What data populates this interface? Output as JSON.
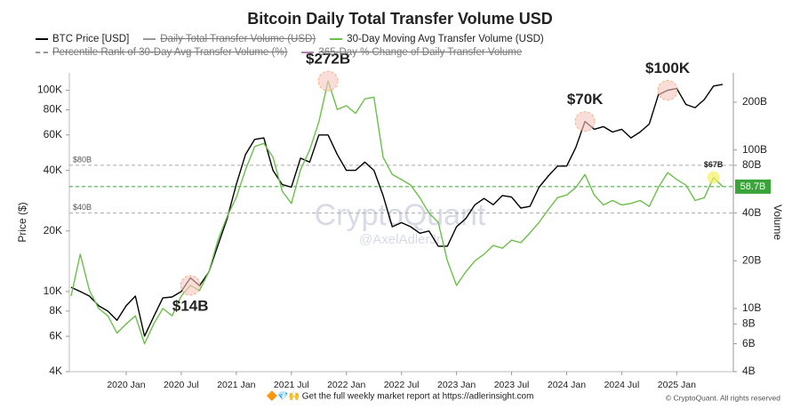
{
  "chart_data": {
    "type": "line",
    "title": "Bitcoin Daily Total Transfer Volume USD",
    "categories": [
      null,
      null,
      null,
      null,
      null,
      null,
      "2020 Jan",
      null,
      null,
      null,
      null,
      null,
      "2020 Jul",
      null,
      null,
      null,
      null,
      null,
      "2021 Jan",
      null,
      null,
      null,
      null,
      null,
      "2021 Jul",
      null,
      null,
      null,
      null,
      null,
      "2022 Jan",
      null,
      null,
      null,
      null,
      null,
      "2022 Jul",
      null,
      null,
      null,
      null,
      null,
      "2023 Jan",
      null,
      null,
      null,
      null,
      null,
      "2023 Jul",
      null,
      null,
      null,
      null,
      null,
      "2024 Jan",
      null,
      null,
      null,
      null,
      null,
      "2024 Jul",
      null,
      null,
      null,
      null,
      null,
      "2025 Jan",
      null,
      null,
      null,
      null,
      null
    ],
    "series": [
      {
        "name": "BTC Price [USD]",
        "color": "#000000",
        "axis": "y",
        "values": [
          10500,
          10000,
          9500,
          8500,
          8000,
          7200,
          8500,
          9500,
          6000,
          7500,
          9300,
          9400,
          10000,
          11700,
          10700,
          12500,
          17000,
          23000,
          34000,
          48000,
          57000,
          58000,
          40000,
          34000,
          33000,
          46000,
          44000,
          60000,
          60000,
          48000,
          40000,
          40000,
          44000,
          40000,
          30000,
          21000,
          22000,
          21000,
          19500,
          20000,
          16800,
          16800,
          21000,
          23000,
          27000,
          29000,
          27000,
          30000,
          29500,
          26000,
          26500,
          33000,
          37500,
          42000,
          42000,
          52000,
          70000,
          64000,
          66000,
          62000,
          64000,
          58000,
          62000,
          68000,
          95000,
          100000,
          102000,
          85000,
          82000,
          90000,
          105000,
          107000
        ]
      },
      {
        "name": "30-Day Moving Avg Transfer Volume (USD)",
        "color": "#6dbf4b",
        "axis": "y2",
        "values": [
          12,
          22,
          13,
          10,
          9,
          7,
          8,
          9,
          6,
          8,
          10,
          9,
          12,
          14,
          13,
          17,
          27,
          38,
          50,
          75,
          105,
          110,
          90,
          55,
          46,
          75,
          100,
          150,
          272,
          180,
          190,
          170,
          210,
          215,
          90,
          70,
          65,
          60,
          50,
          40,
          35,
          20,
          14,
          17,
          20,
          22,
          25,
          24,
          27,
          26,
          30,
          35,
          42,
          50,
          52,
          58,
          70,
          52,
          45,
          48,
          45,
          46,
          48,
          44,
          58,
          72,
          65,
          60,
          48,
          50,
          67,
          58.7
        ]
      }
    ],
    "hidden_series": [
      {
        "name": "Daily Total Transfer Volume (USD)",
        "color": "#999999",
        "dash": false
      },
      {
        "name": "Percentile Rank of 30-Day Avg Transfer Volume (%)",
        "color": "#999999",
        "dash": true
      },
      {
        "name": "365-Day % Change of Daily Transfer Volume",
        "color": "#b080b0",
        "dash": false
      }
    ],
    "y_label": "Price ($)",
    "y2_label": "Volume",
    "log_scale": true,
    "ylim": [
      4000,
      122000
    ],
    "yticks": [
      {
        "value": 4000,
        "label": "4K"
      },
      {
        "value": 6000,
        "label": "6K"
      },
      {
        "value": 8000,
        "label": "8K"
      },
      {
        "value": 10000,
        "label": "10K"
      },
      {
        "value": 20000,
        "label": "20K"
      },
      {
        "value": 40000,
        "label": "40K"
      },
      {
        "value": 60000,
        "label": "60K"
      },
      {
        "value": 80000,
        "label": "80K"
      },
      {
        "value": 100000,
        "label": "100K"
      }
    ],
    "y2lim": [
      4,
      306
    ],
    "y2ticks": [
      {
        "value": 4,
        "label": "4B"
      },
      {
        "value": 6,
        "label": "6B"
      },
      {
        "value": 8,
        "label": "8B"
      },
      {
        "value": 10,
        "label": "10B"
      },
      {
        "value": 20,
        "label": "20B"
      },
      {
        "value": 40,
        "label": "40B"
      },
      {
        "value": 80,
        "label": "80B"
      },
      {
        "value": 100,
        "label": "100B"
      },
      {
        "value": 200,
        "label": "200B"
      }
    ],
    "reference_lines": [
      {
        "value": 80,
        "label": "$80B",
        "color": "#aaaaaa"
      },
      {
        "value": 40,
        "label": "$40B",
        "color": "#aaaaaa"
      },
      {
        "value": 58.7,
        "label": "58.7B",
        "color": "#3aa33a"
      }
    ],
    "annotations": [
      {
        "label": "$272B",
        "series": "30-Day Moving Avg Transfer Volume (USD)",
        "value": 272,
        "side": "above"
      },
      {
        "label": "$14B",
        "series": "30-Day Moving Avg Transfer Volume (USD)",
        "value": 14,
        "side": "below"
      },
      {
        "label": "$70K",
        "series": "BTC Price [USD]",
        "value": 70000,
        "side": "above"
      },
      {
        "label": "$100K",
        "series": "BTC Price [USD]",
        "value": 100000,
        "side": "above"
      },
      {
        "label": "$67B",
        "series": "30-Day Moving Avg Transfer Volume (USD)",
        "value": 67,
        "side": "small"
      }
    ],
    "watermark": [
      "CryptoQuant",
      "@AxelAdlerJr"
    ],
    "footer": "🔶💎🙌 Get the full weekly market report at https://adlerinsight.com",
    "copyright": "© CryptoQuant. All rights reserved"
  }
}
